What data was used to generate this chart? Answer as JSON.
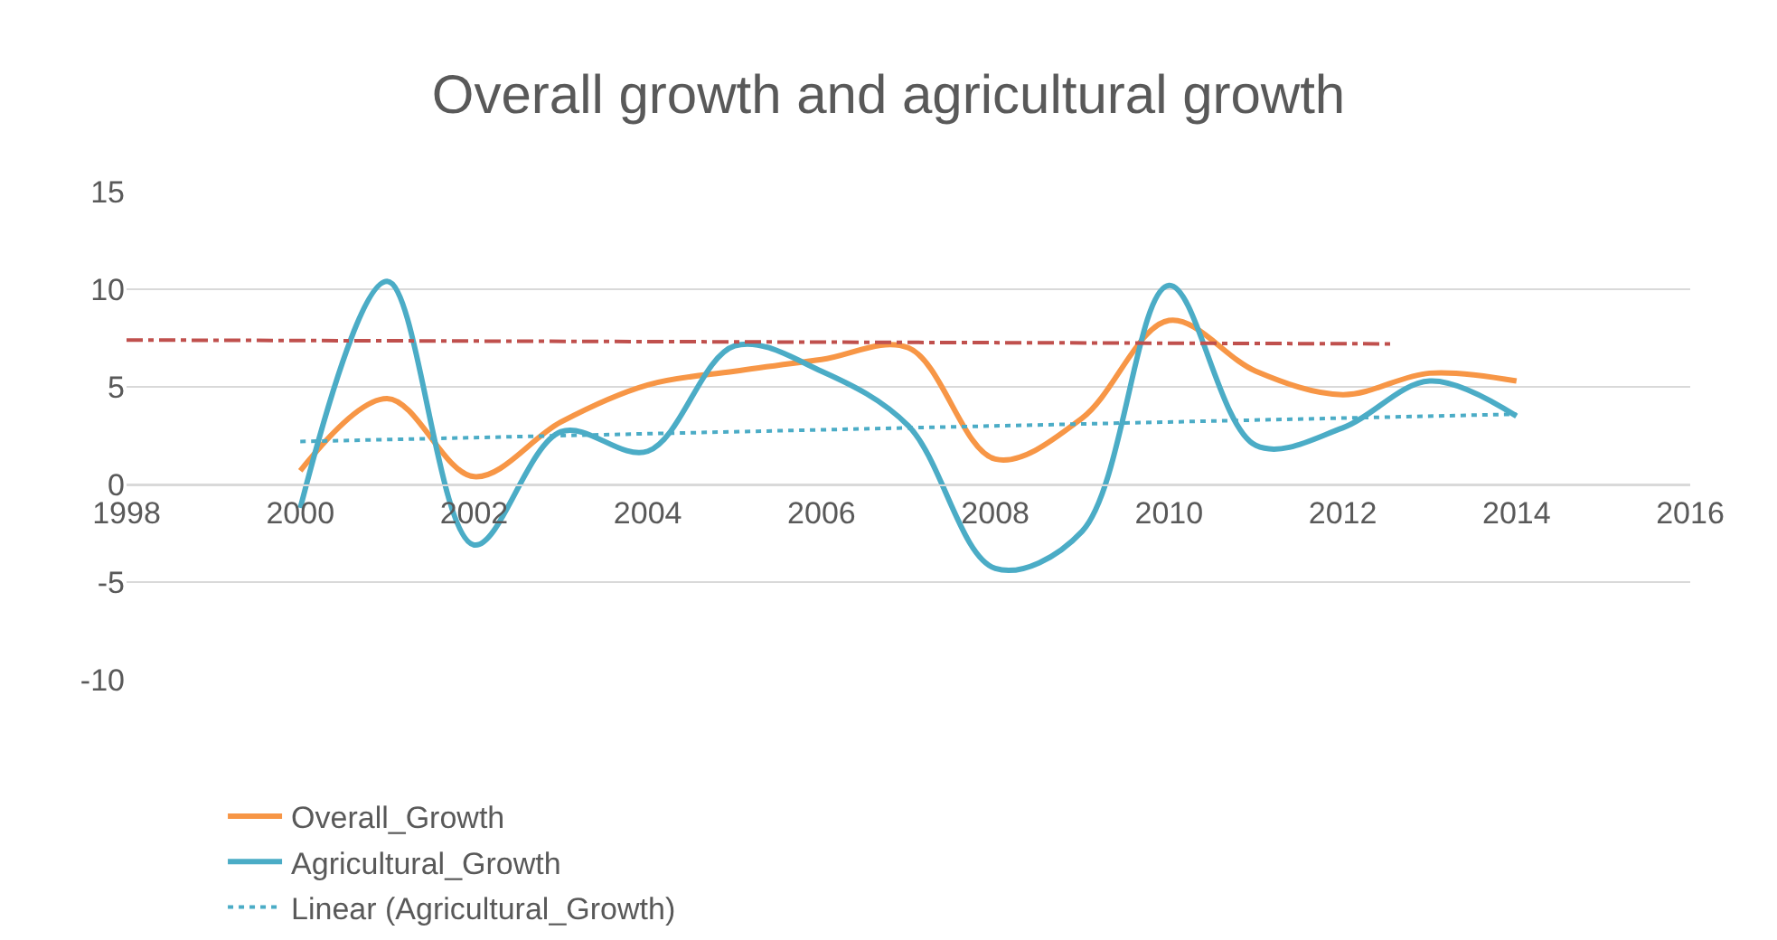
{
  "chart_data": {
    "type": "line",
    "title": "Overall growth and agricultural growth",
    "x": [
      2000,
      2001,
      2002,
      2003,
      2004,
      2005,
      2006,
      2007,
      2008,
      2009,
      2010,
      2011,
      2012,
      2013,
      2014
    ],
    "series": [
      {
        "name": "Overall_Growth",
        "color": "#f79646",
        "values": [
          0.7,
          4.4,
          0.4,
          3.2,
          5.1,
          5.8,
          6.4,
          7.0,
          1.3,
          3.4,
          8.4,
          5.8,
          4.6,
          5.7,
          5.3
        ]
      },
      {
        "name": "Agricultural_Growth",
        "color": "#4bacc6",
        "values": [
          -1.2,
          10.4,
          -3.1,
          2.7,
          1.7,
          7.1,
          5.8,
          3.0,
          -4.3,
          -2.4,
          10.2,
          2.0,
          2.9,
          5.3,
          3.5
        ]
      },
      {
        "name": "Linear (Agricultural_Growth)",
        "color": "#4bacc6",
        "x": [
          2000,
          2014
        ],
        "values": [
          2.2,
          3.6
        ],
        "line_style": "dotted"
      },
      {
        "color": "#c0504d",
        "x": [
          1998,
          2012.6
        ],
        "values": [
          7.4,
          7.2
        ],
        "line_style": "dashdot"
      }
    ],
    "xlim": [
      1998,
      2016
    ],
    "xticks": [
      1998,
      2000,
      2002,
      2004,
      2006,
      2008,
      2010,
      2012,
      2014,
      2016
    ],
    "ylim": [
      -10,
      15
    ],
    "yticks": [
      -10,
      -5,
      0,
      5,
      10,
      15
    ],
    "grid": "y",
    "legend": "bottom",
    "marker": "none",
    "line_style": "solid"
  }
}
